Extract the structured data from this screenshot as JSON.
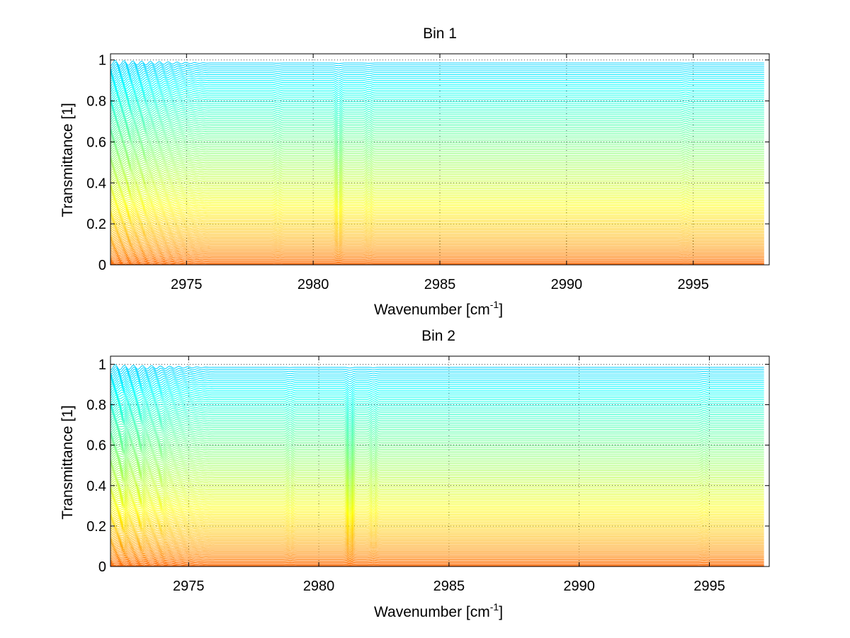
{
  "chart_data": [
    {
      "type": "line",
      "title": "Bin 1",
      "xlabel_main": "Wavenumber [cm",
      "xlabel_sup": "-1",
      "xlabel_end": "]",
      "ylabel": "Transmittance [1]",
      "xlim": [
        2972,
        2998
      ],
      "ylim": [
        0,
        1.03
      ],
      "x_data_range": [
        2972,
        2997.8
      ],
      "xticks": [
        2975,
        2980,
        2985,
        2990,
        2995
      ],
      "yticks": [
        0,
        0.2,
        0.4,
        0.6,
        0.8,
        1
      ],
      "ytick_labels": [
        "0",
        "0.2",
        "0.4",
        "0.6",
        "0.8",
        "1"
      ],
      "grid": true,
      "colormap": "jet",
      "series_count": 120,
      "series_levels_description": "family of transmittance spectra with baselines spread evenly from ~0 to ~1",
      "absorption_features": [
        {
          "x": 2972.8,
          "depth": 0.02
        },
        {
          "x": 2973.4,
          "depth": 0.015
        },
        {
          "x": 2978.6,
          "depth": 0.02
        },
        {
          "x": 2981.0,
          "depth": 0.06
        },
        {
          "x": 2982.2,
          "depth": 0.03
        },
        {
          "x": 2994.7,
          "depth": 0.015
        }
      ]
    },
    {
      "type": "line",
      "title": "Bin 2",
      "xlabel_main": "Wavenumber [cm",
      "xlabel_sup": "-1",
      "xlabel_end": "]",
      "ylabel": "Transmittance [1]",
      "xlim": [
        2972,
        2997.3
      ],
      "ylim": [
        0,
        1.04
      ],
      "x_data_range": [
        2972,
        2997.1
      ],
      "xticks": [
        2975,
        2980,
        2985,
        2990,
        2995
      ],
      "yticks": [
        0,
        0.2,
        0.4,
        0.6,
        0.8,
        1
      ],
      "ytick_labels": [
        "0",
        "0.2",
        "0.4",
        "0.6",
        "0.8",
        "1"
      ],
      "grid": true,
      "colormap": "jet",
      "series_count": 120,
      "series_levels_description": "family of transmittance spectra with baselines spread evenly from ~0 to ~1",
      "absorption_features": [
        {
          "x": 2972.5,
          "depth": 0.05
        },
        {
          "x": 2973.2,
          "depth": 0.04
        },
        {
          "x": 2974.0,
          "depth": 0.03
        },
        {
          "x": 2978.9,
          "depth": 0.03
        },
        {
          "x": 2981.2,
          "depth": 0.09
        },
        {
          "x": 2982.1,
          "depth": 0.04
        },
        {
          "x": 2994.8,
          "depth": 0.02
        }
      ]
    }
  ]
}
